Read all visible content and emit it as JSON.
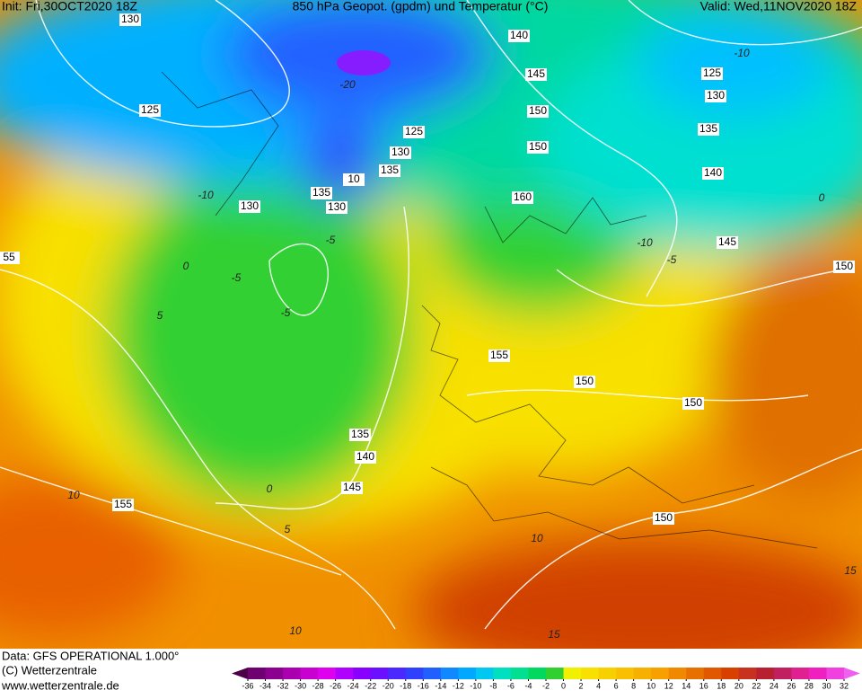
{
  "header": {
    "init": "Init: Fri,30OCT2020 18Z",
    "title": "850 hPa Geopot. (gpdm) und Temperatur (°C)",
    "valid": "Valid: Wed,11NOV2020 18Z"
  },
  "footer": {
    "data": "Data: GFS OPERATIONAL 1.000°",
    "copyright": "(C) Wetterzentrale",
    "url": "www.wetterzentrale.de"
  },
  "geopotential_labels": [
    "130",
    "140",
    "145",
    "125",
    "130",
    "150",
    "125",
    "135",
    "125",
    "150",
    "130",
    "135",
    "140",
    "10",
    "135",
    "160",
    "130",
    "130",
    "145",
    "55",
    "150",
    "155",
    "150",
    "150",
    "135",
    "140",
    "145",
    "155",
    "150"
  ],
  "temperature_labels": [
    "-10",
    "-10",
    "-5",
    "0",
    "5",
    "10",
    "5",
    "0",
    "10",
    "15",
    "15",
    "10",
    "-10",
    "0",
    "-5",
    "-20",
    "-5",
    "-5"
  ],
  "colorbar": {
    "ticks": [
      -36,
      -34,
      -32,
      -30,
      -28,
      -26,
      -24,
      -22,
      -20,
      -18,
      -16,
      -14,
      -12,
      -10,
      -8,
      -6,
      -4,
      -2,
      0,
      2,
      4,
      6,
      8,
      10,
      12,
      14,
      16,
      18,
      20,
      22,
      24,
      26,
      28,
      30,
      32
    ],
    "colors": [
      "#4b0048",
      "#6e0070",
      "#8c0090",
      "#aa00b0",
      "#c800d0",
      "#e000f0",
      "#b000ff",
      "#8a00ff",
      "#6a10ff",
      "#4a28ff",
      "#3040ff",
      "#2060ff",
      "#1088ff",
      "#00a8ff",
      "#00c8f0",
      "#00e0c0",
      "#00e090",
      "#00d860",
      "#30d030",
      "#f0f000",
      "#f8e000",
      "#f8d000",
      "#f8c000",
      "#f8b000",
      "#f8a000",
      "#f08800",
      "#e87000",
      "#e05800",
      "#d84000",
      "#c83020",
      "#b82030",
      "#c02060",
      "#e02090",
      "#f020c0",
      "#f040e0",
      "#f060f0"
    ]
  }
}
